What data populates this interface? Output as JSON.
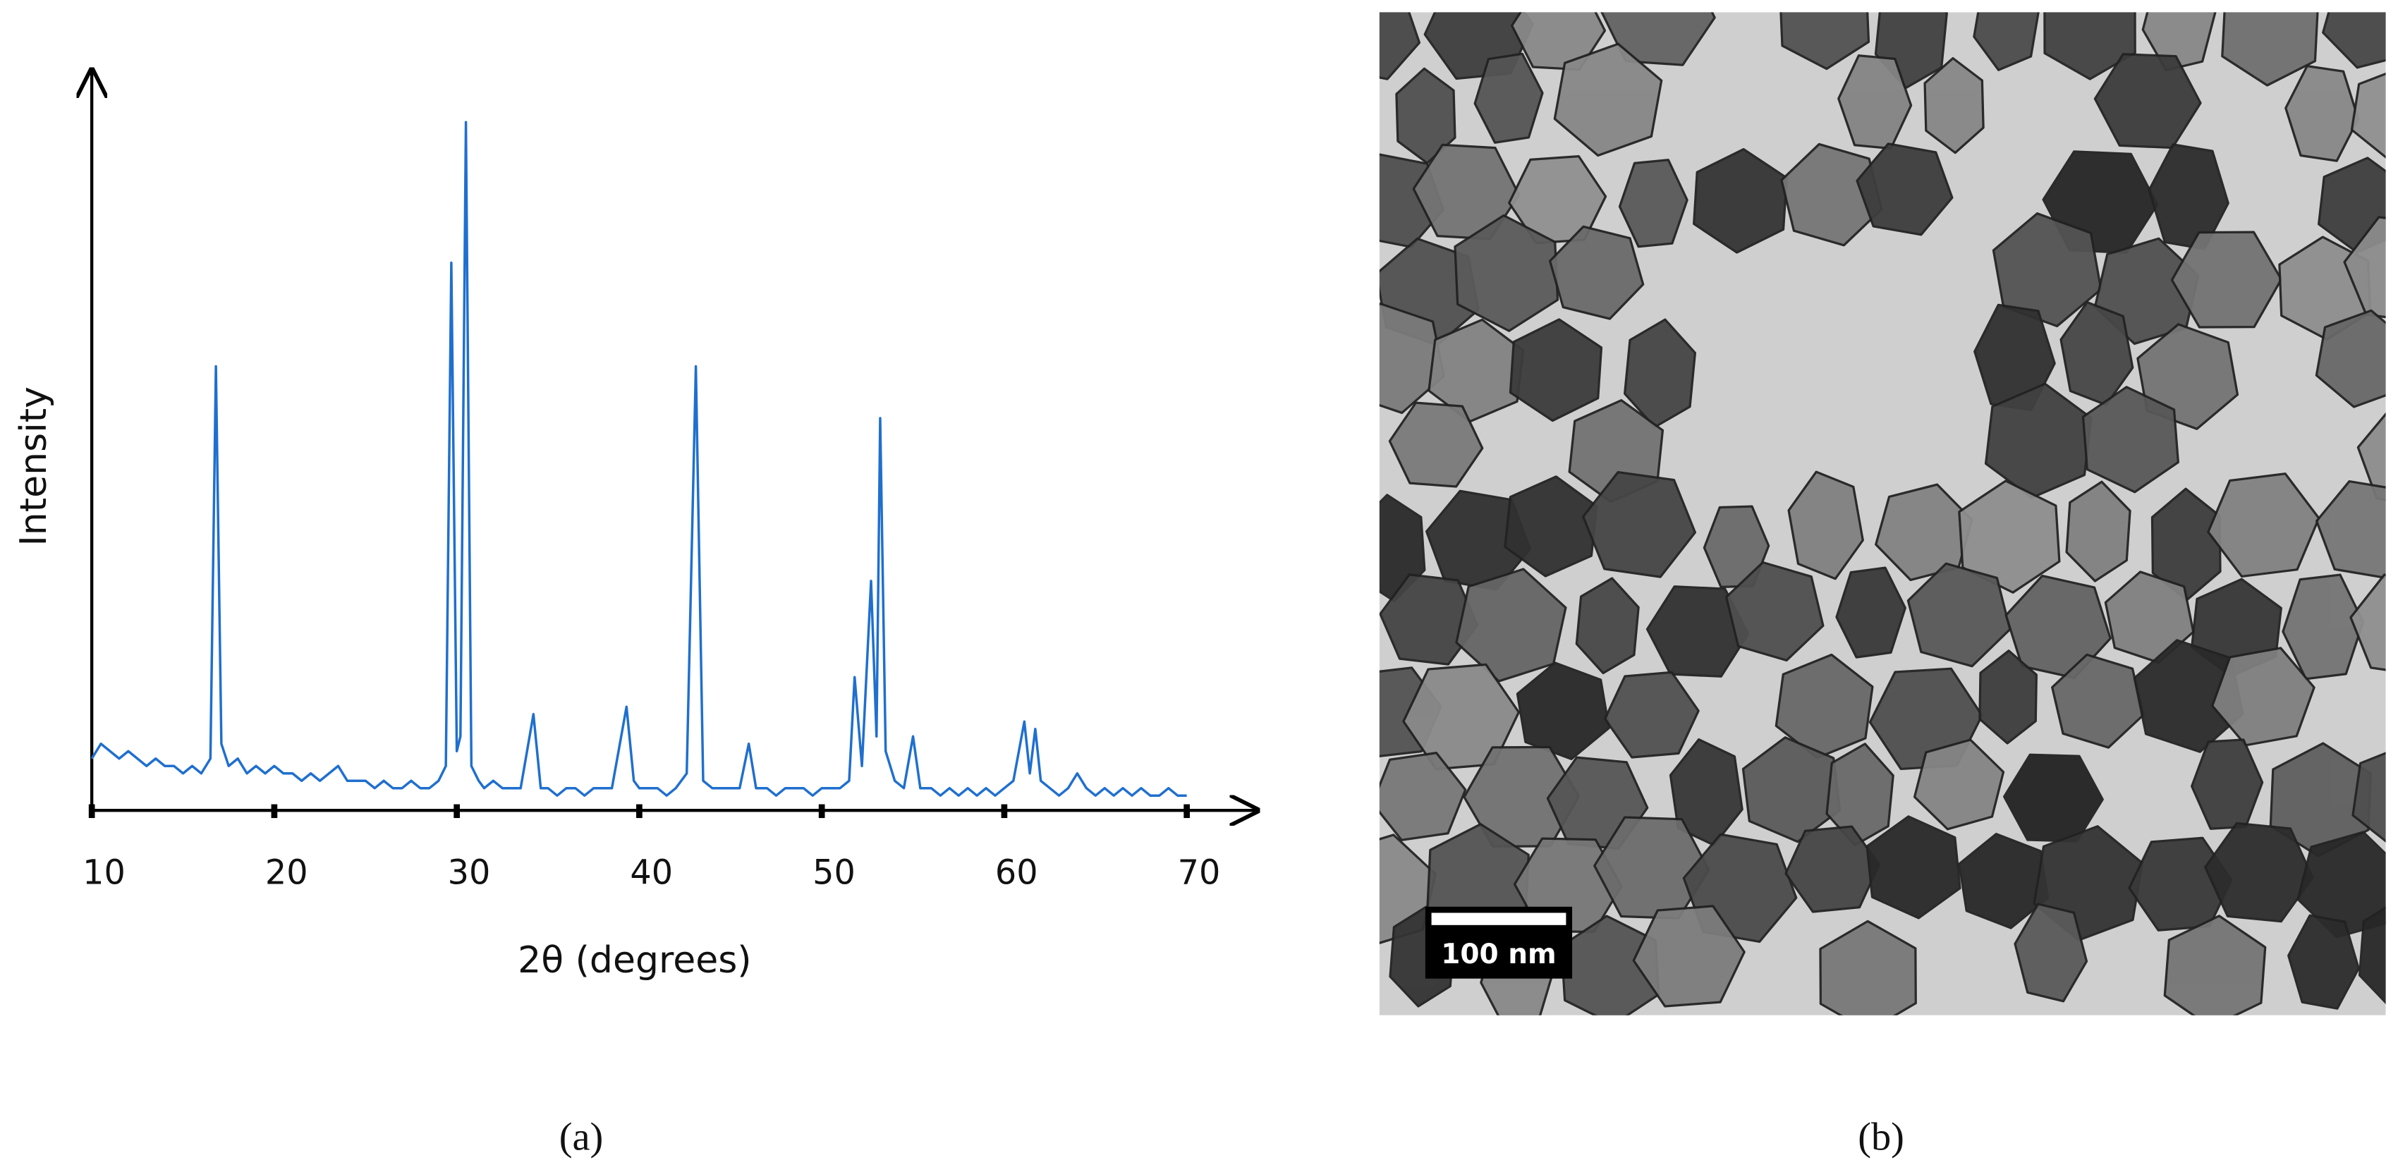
{
  "chart_data": {
    "type": "line",
    "xlabel": "2θ (degrees)",
    "ylabel": "Intensity",
    "color": "#1f6fcf",
    "xlim": [
      10,
      70
    ],
    "xticks": [
      10,
      20,
      30,
      40,
      50,
      60,
      70
    ],
    "ylim": [
      0,
      100
    ],
    "x": [
      10,
      10.5,
      11,
      11.5,
      12,
      12.5,
      13,
      13.5,
      14,
      14.5,
      15,
      15.5,
      16,
      16.5,
      16.8,
      17.1,
      17.5,
      18,
      18.5,
      19,
      19.5,
      20,
      20.5,
      21,
      21.5,
      22,
      22.5,
      23,
      23.5,
      24,
      24.5,
      25,
      25.5,
      26,
      26.5,
      27,
      27.5,
      28,
      28.5,
      29,
      29.4,
      29.7,
      30,
      30.2,
      30.5,
      30.8,
      31.2,
      31.5,
      32,
      32.5,
      33,
      33.5,
      34.2,
      34.6,
      35,
      35.5,
      36,
      36.5,
      37,
      37.5,
      38,
      38.5,
      39.3,
      39.7,
      40,
      40.5,
      41,
      41.5,
      42,
      42.6,
      43.1,
      43.5,
      44,
      44.5,
      45,
      45.5,
      46,
      46.4,
      47,
      47.5,
      48,
      48.5,
      49,
      49.5,
      50,
      50.5,
      51,
      51.5,
      51.8,
      52.2,
      52.7,
      53,
      53.2,
      53.5,
      54,
      54.5,
      55,
      55.4,
      56,
      56.5,
      57,
      57.5,
      58,
      58.5,
      59,
      59.5,
      60,
      60.5,
      61.1,
      61.4,
      61.7,
      62,
      62.5,
      63,
      63.5,
      64,
      64.5,
      65,
      65.5,
      66,
      66.5,
      67,
      67.5,
      68,
      68.5,
      69,
      69.5,
      70
    ],
    "values": [
      7,
      9,
      8,
      7,
      8,
      7,
      6,
      7,
      6,
      6,
      5,
      6,
      5,
      7,
      60,
      9,
      6,
      7,
      5,
      6,
      5,
      6,
      5,
      5,
      4,
      5,
      4,
      5,
      6,
      4,
      4,
      4,
      3,
      4,
      3,
      3,
      4,
      3,
      3,
      4,
      6,
      74,
      8,
      10,
      93,
      6,
      4,
      3,
      4,
      3,
      3,
      3,
      13,
      3,
      3,
      2,
      3,
      3,
      2,
      3,
      3,
      3,
      14,
      4,
      3,
      3,
      3,
      2,
      3,
      5,
      60,
      4,
      3,
      3,
      3,
      3,
      9,
      3,
      3,
      2,
      3,
      3,
      3,
      2,
      3,
      3,
      3,
      4,
      18,
      6,
      31,
      10,
      53,
      8,
      4,
      3,
      10,
      3,
      3,
      2,
      3,
      2,
      3,
      2,
      3,
      2,
      3,
      4,
      12,
      5,
      11,
      4,
      3,
      2,
      3,
      5,
      3,
      2,
      3,
      2,
      3,
      2,
      3,
      2,
      2,
      3,
      2,
      2
    ]
  },
  "panels": {
    "a": "(a)",
    "b": "(b)"
  },
  "tem_image": {
    "scale_bar": "100 nm"
  }
}
